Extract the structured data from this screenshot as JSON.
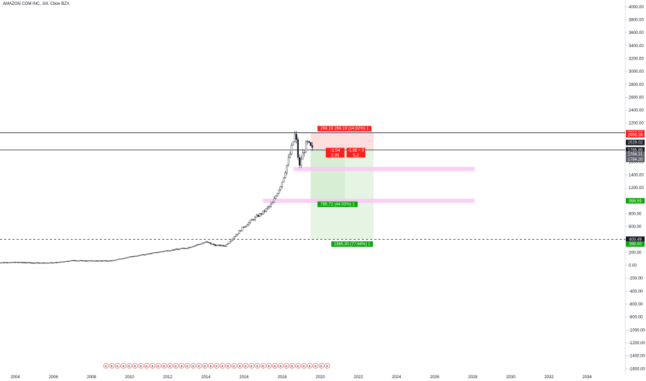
{
  "header": {
    "title": "AMAZON COM INC, 1M, Cboe BZX"
  },
  "colors": {
    "background": "#ffffff",
    "candle": "#131722",
    "loss_zone": "#fbd3d3",
    "profit_zone": "#e6f4e4",
    "profit_zone_dark": "#d7eed5",
    "pink_zone": "#f8c8f4",
    "red_label": "#ff1f1f",
    "green_label": "#0aa70a",
    "black_label": "#131722",
    "grey_label": "#5d606b"
  },
  "chart_data": {
    "type": "candlestick",
    "title": "AMAZON COM INC, 1M, Cboe BZX",
    "y_axis": {
      "ticks": [
        "4000.00",
        "3800.00",
        "3600.00",
        "3400.00",
        "3200.00",
        "3000.00",
        "2800.00",
        "2600.00",
        "2400.00",
        "2200.00",
        "2000.00",
        "1800.00",
        "1600.00",
        "1400.00",
        "1200.00",
        "1000.00",
        "800.00",
        "600.00",
        "400.00",
        "200.00",
        "0.00",
        "-200.00",
        "-400.00",
        "-600.00",
        "-800.00",
        "-1000.00",
        "-1200.00",
        "-1400.00",
        "-1600.00"
      ],
      "range": [
        -1600,
        4000
      ]
    },
    "x_axis": {
      "ticks": [
        "2004",
        "2006",
        "2008",
        "2010",
        "2012",
        "2014",
        "2016",
        "2018",
        "2020",
        "2022",
        "2024",
        "2026",
        "2028",
        "2030",
        "2032",
        "2034"
      ],
      "range": [
        2003,
        2035
      ]
    },
    "price_path": [
      [
        2003.0,
        40
      ],
      [
        2004.0,
        48
      ],
      [
        2005.0,
        38
      ],
      [
        2006.0,
        40
      ],
      [
        2007.0,
        75
      ],
      [
        2008.0,
        70
      ],
      [
        2009.0,
        70
      ],
      [
        2010.0,
        130
      ],
      [
        2011.0,
        180
      ],
      [
        2012.0,
        230
      ],
      [
        2013.0,
        270
      ],
      [
        2014.0,
        360
      ],
      [
        2014.5,
        310
      ],
      [
        2015.0,
        300
      ],
      [
        2015.5,
        450
      ],
      [
        2016.0,
        600
      ],
      [
        2016.5,
        720
      ],
      [
        2017.0,
        820
      ],
      [
        2017.5,
        960
      ],
      [
        2018.0,
        1300
      ],
      [
        2018.4,
        1700
      ],
      [
        2018.7,
        2050
      ],
      [
        2018.9,
        1500
      ],
      [
        2019.0,
        1650
      ],
      [
        2019.3,
        1900
      ],
      [
        2019.6,
        1780
      ]
    ],
    "horizontal_lines": [
      {
        "price": 2050.5,
        "style": "solid",
        "label": "2050.50"
      },
      {
        "price": 1785.85,
        "style": "solid",
        "label": "1785.85"
      },
      {
        "price": 403.49,
        "style": "dashed",
        "label": "403.49"
      }
    ],
    "pink_zones": [
      {
        "price": 1490,
        "x_start": 2018.6,
        "x_end": 2028.1
      },
      {
        "price": 998.59,
        "x_start": 2017.0,
        "x_end": 2028.1
      }
    ],
    "position": {
      "x_start": 2019.5,
      "x_mid": 2021.3,
      "x_end": 2022.8,
      "entry": 1785.85,
      "stop": 2050.5,
      "target": 403.49,
      "stop_label": "266.19  266.19 (14.92%) 1",
      "target_label_1": "785.72 (44.03%) 1",
      "target_label_2": "1385.20 (77.64%) 1",
      "ratio_boxes": [
        {
          "line1": "-1.54",
          "line2": "2.95"
        },
        {
          "line1": "-1.65 ÷ 0",
          "line2": "5.2"
        }
      ]
    },
    "price_tags": [
      {
        "price": 2050.5,
        "label": "2050.50",
        "color": "red"
      },
      {
        "price": 2020,
        "label": "2050.39",
        "color": "red"
      },
      {
        "price": 1900,
        "label": "2029.02",
        "color": "black"
      },
      {
        "price": 1785.85,
        "label": "1785.85",
        "color": "black"
      },
      {
        "price": 1720,
        "label": "1784.31",
        "color": "grey"
      },
      {
        "price": 1640,
        "label": "1784.20",
        "color": "grey"
      },
      {
        "price": 998.59,
        "label": "998.59",
        "color": "green"
      },
      {
        "price": 403.49,
        "label": "403.49",
        "color": "black"
      },
      {
        "price": 330,
        "label": "399.00",
        "color": "green"
      }
    ],
    "earnings_marker_count": 39,
    "earnings_marker_label": "E"
  }
}
